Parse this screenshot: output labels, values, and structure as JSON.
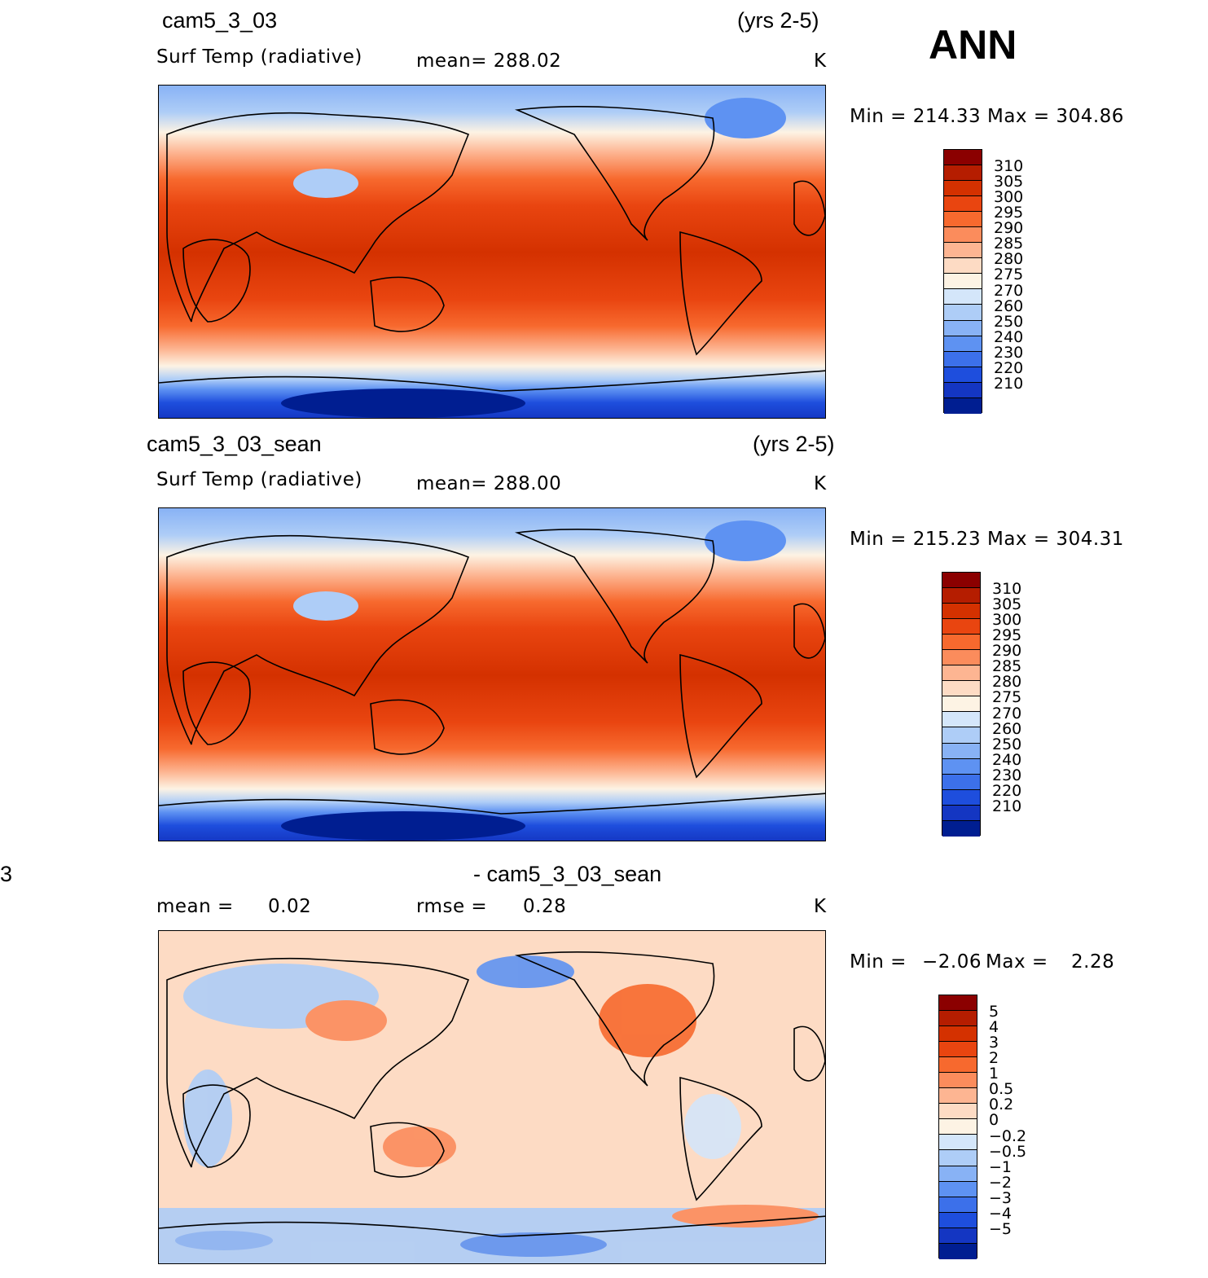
{
  "figure_label": "ANN",
  "panels": [
    {
      "case": "cam5_3_03",
      "years": "(yrs 2-5)",
      "variable": "Surf Temp (radiative)",
      "stat1": "mean=  288.02",
      "stat2": "",
      "units": "K",
      "minmax": "Min  =  214.33  Max  =  304.86",
      "colorbar": {
        "labels": [
          "310",
          "305",
          "300",
          "295",
          "290",
          "285",
          "280",
          "275",
          "270",
          "260",
          "250",
          "240",
          "230",
          "220",
          "210"
        ],
        "colors": [
          "#8b0000",
          "#b51d00",
          "#d43100",
          "#e94510",
          "#f7692e",
          "#fb8c5c",
          "#fdb592",
          "#fddbc4",
          "#fdf3e4",
          "#d4e6fa",
          "#aecdf7",
          "#88b2f5",
          "#5e92f2",
          "#3c70ea",
          "#1e4edd",
          "#1436c2",
          "#001e91"
        ]
      }
    },
    {
      "case": "cam5_3_03_sean",
      "years": "(yrs 2-5)",
      "variable": "Surf Temp (radiative)",
      "stat1": "mean=  288.00",
      "stat2": "",
      "units": "K",
      "minmax": "Min  =  215.23  Max  =  304.31",
      "colorbar": {
        "labels": [
          "310",
          "305",
          "300",
          "295",
          "290",
          "285",
          "280",
          "275",
          "270",
          "260",
          "250",
          "240",
          "230",
          "220",
          "210"
        ],
        "colors": [
          "#8b0000",
          "#b51d00",
          "#d43100",
          "#e94510",
          "#f7692e",
          "#fb8c5c",
          "#fdb592",
          "#fddbc4",
          "#fdf3e4",
          "#d4e6fa",
          "#aecdf7",
          "#88b2f5",
          "#5e92f2",
          "#3c70ea",
          "#1e4edd",
          "#1436c2",
          "#001e91"
        ]
      }
    },
    {
      "case_left": "3",
      "case": "- cam5_3_03_sean",
      "years": "",
      "variable": "mean  =",
      "variable_value": "0.02",
      "stat1": "rmse  =",
      "stat2": "0.28",
      "units": "K",
      "minmax_min_label": "Min  =",
      "minmax_min": "−2.06",
      "minmax_max_label": "Max  =",
      "minmax_max": "2.28",
      "colorbar": {
        "labels": [
          "5",
          "4",
          "3",
          "2",
          "1",
          "0.5",
          "0.2",
          "0",
          "−0.2",
          "−0.5",
          "−1",
          "−2",
          "−3",
          "−4",
          "−5"
        ],
        "colors": [
          "#8b0000",
          "#b51d00",
          "#d43100",
          "#e94510",
          "#f7692e",
          "#fb8c5c",
          "#fdb592",
          "#fddbc4",
          "#fdf3e4",
          "#d4e6fa",
          "#aecdf7",
          "#88b2f5",
          "#5e92f2",
          "#3c70ea",
          "#1e4edd",
          "#1436c2",
          "#001e91"
        ]
      }
    }
  ]
}
